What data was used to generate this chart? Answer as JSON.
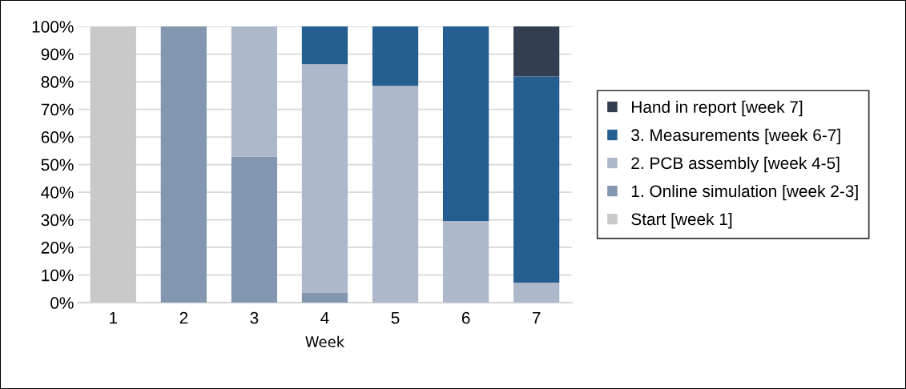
{
  "chart_data": {
    "type": "bar",
    "stacked": true,
    "xlabel": "Week",
    "categories": [
      "1",
      "2",
      "3",
      "4",
      "5",
      "6",
      "7"
    ],
    "series": [
      {
        "name": "Start [week 1]",
        "color": "#c9c9c9",
        "values": [
          100,
          0,
          0,
          0,
          0,
          0,
          0
        ]
      },
      {
        "name": "1. Online simulation [week 2-3]",
        "color": "#8497b0",
        "values": [
          0,
          100,
          52.9,
          3.5,
          0,
          0,
          0
        ]
      },
      {
        "name": "2. PCB assembly [week 4-5]",
        "color": "#adb9ca",
        "values": [
          0,
          0,
          47.1,
          82.8,
          78.5,
          29.6,
          7.2
        ]
      },
      {
        "name": "3. Measurements [week 6-7]",
        "color": "#255e91",
        "values": [
          0,
          0,
          0,
          13.7,
          21.5,
          70.4,
          74.7
        ]
      },
      {
        "name": "Hand in report [week 7]",
        "color": "#333f50",
        "values": [
          0,
          0,
          0,
          0,
          0,
          0,
          18.1
        ]
      }
    ],
    "ylim": [
      0,
      100
    ],
    "yticks": [
      {
        "value": 0,
        "label": "0%"
      },
      {
        "value": 10,
        "label": "10%"
      },
      {
        "value": 20,
        "label": "20%"
      },
      {
        "value": 30,
        "label": "30%"
      },
      {
        "value": 40,
        "label": "40%"
      },
      {
        "value": 50,
        "label": "50%"
      },
      {
        "value": 60,
        "label": "60%"
      },
      {
        "value": 70,
        "label": "70%"
      },
      {
        "value": 80,
        "label": "80%"
      },
      {
        "value": 90,
        "label": "90%"
      },
      {
        "value": 100,
        "label": "100%"
      }
    ],
    "grid": "y",
    "legend": "right"
  }
}
